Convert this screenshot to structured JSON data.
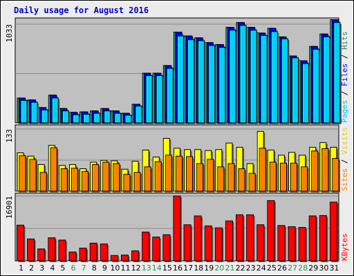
{
  "chart_data": [
    {
      "type": "bar",
      "title": "Daily usage for August 2016",
      "categories": [
        "1",
        "2",
        "3",
        "4",
        "5",
        "6",
        "7",
        "8",
        "9",
        "10",
        "11",
        "12",
        "13",
        "14",
        "15",
        "16",
        "17",
        "18",
        "19",
        "20",
        "21",
        "22",
        "23",
        "24",
        "25",
        "26",
        "27",
        "28",
        "29",
        "30",
        "31"
      ],
      "weekend_days": [
        "6",
        "7",
        "13",
        "14",
        "20",
        "21",
        "27",
        "28"
      ],
      "y_tick_label": "1033",
      "ylim": [
        0,
        1033
      ],
      "series": [
        {
          "name": "Hits",
          "color": "#2e8b6e",
          "values": [
            260,
            240,
            160,
            290,
            150,
            110,
            115,
            125,
            150,
            125,
            100,
            195,
            520,
            520,
            600,
            950,
            910,
            890,
            840,
            820,
            1000,
            1050,
            1000,
            940,
            990,
            900,
            700,
            650,
            800,
            930,
            1080
          ]
        },
        {
          "name": "Files",
          "color": "#0000ff",
          "values": [
            260,
            240,
            160,
            290,
            150,
            110,
            115,
            125,
            150,
            125,
            100,
            195,
            520,
            520,
            600,
            950,
            910,
            890,
            840,
            820,
            1000,
            1050,
            1000,
            940,
            990,
            900,
            700,
            650,
            800,
            930,
            1080
          ]
        },
        {
          "name": "Pages",
          "color": "#00d0f8",
          "values": [
            235,
            215,
            135,
            260,
            125,
            85,
            90,
            100,
            125,
            100,
            80,
            175,
            495,
            495,
            570,
            910,
            870,
            860,
            810,
            790,
            970,
            1020,
            970,
            915,
            955,
            880,
            680,
            620,
            770,
            900,
            1050
          ]
        }
      ],
      "right_label": [
        {
          "text": "Pages",
          "color": "#00c8e8"
        },
        {
          "text": "Files",
          "color": "#0000ff"
        },
        {
          "text": "Hits",
          "color": "#2e8b6e"
        }
      ]
    },
    {
      "type": "bar",
      "y_tick_label": "133",
      "ylim": [
        0,
        133
      ],
      "series": [
        {
          "name": "Visits",
          "color": "#ffff00",
          "values": [
            82,
            75,
            57,
            98,
            55,
            57,
            48,
            62,
            66,
            65,
            47,
            64,
            88,
            73,
            113,
            92,
            89,
            89,
            87,
            89,
            103,
            94,
            59,
            128,
            88,
            77,
            83,
            77,
            94,
            104,
            94
          ]
        },
        {
          "name": "Sites",
          "color": "#ff8000",
          "values": [
            76,
            68,
            40,
            93,
            48,
            49,
            42,
            57,
            62,
            59,
            36,
            40,
            52,
            63,
            77,
            75,
            74,
            59,
            68,
            52,
            59,
            48,
            38,
            92,
            62,
            60,
            60,
            52,
            86,
            91,
            70
          ]
        }
      ],
      "right_label": [
        {
          "text": "Sites",
          "color": "#ff8000"
        },
        {
          "text": "Visits",
          "color": "#e8d000"
        }
      ]
    },
    {
      "type": "bar",
      "y_tick_label": "16901",
      "ylim": [
        0,
        16901
      ],
      "series": [
        {
          "name": "KBytes",
          "color": "#ff0000",
          "values": [
            9300,
            5700,
            3100,
            6000,
            5400,
            2300,
            3300,
            4600,
            4400,
            1400,
            1500,
            2600,
            7500,
            6200,
            6800,
            16900,
            9400,
            11700,
            9100,
            8600,
            10400,
            12000,
            12000,
            9400,
            15700,
            9200,
            8900,
            8700,
            11700,
            11800,
            15300
          ]
        }
      ],
      "right_label": [
        {
          "text": "KBytes",
          "color": "#ff0000"
        }
      ]
    }
  ]
}
